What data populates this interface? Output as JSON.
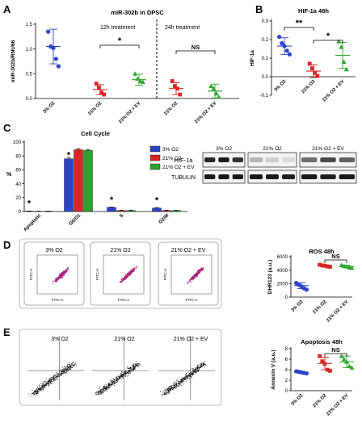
{
  "panel_letters": {
    "A": "A",
    "B": "B",
    "C": "C",
    "D": "D",
    "E": "E"
  },
  "colors": {
    "blue": "#2b44c8",
    "red": "#d92626",
    "green": "#2ca32c"
  },
  "chart_data": [
    {
      "id": "A",
      "type": "scatter",
      "title": "miR-302b in DPSC",
      "ylabel": "miR-302b/RNU66",
      "ylim": [
        0,
        1.5
      ],
      "yticks": [
        "0.0",
        "0.5",
        "1.0",
        "1.5"
      ],
      "section_labels": [
        "12h treatment",
        "24h treatment"
      ],
      "categories": [
        "3% O2",
        "21% O2",
        "21% O2 + EV",
        "21% O2",
        "21% O2 + EV"
      ],
      "groups": [
        {
          "x": "3% O2",
          "color": "blue",
          "marker": "circle",
          "mean": 1.05,
          "sd": 0.35,
          "points": [
            1.35,
            1.05,
            1.02,
            0.8,
            0.65
          ]
        },
        {
          "x": "21% O2",
          "color": "red",
          "marker": "square",
          "mean": 0.18,
          "sd": 0.1,
          "points": [
            0.3,
            0.22,
            0.12,
            0.08
          ]
        },
        {
          "x": "21% O2 + EV",
          "color": "green",
          "marker": "triangle",
          "mean": 0.38,
          "sd": 0.11,
          "points": [
            0.5,
            0.4,
            0.35,
            0.33
          ]
        },
        {
          "x": "21% O2",
          "color": "red",
          "marker": "square",
          "mean": 0.2,
          "sd": 0.12,
          "points": [
            0.35,
            0.25,
            0.2,
            0.08
          ]
        },
        {
          "x": "21% O2 + EV",
          "color": "green",
          "marker": "triangle",
          "mean": 0.15,
          "sd": 0.14,
          "points": [
            0.25,
            0.2,
            0.1,
            0.03
          ]
        }
      ],
      "annotations": [
        {
          "text": "*",
          "from": 1,
          "to": 2
        },
        {
          "text": "NS",
          "from": 3,
          "to": 4
        }
      ]
    },
    {
      "id": "B",
      "type": "scatter",
      "title": "HIF-1a 48h",
      "ylabel": "HIF-1a",
      "ylim": [
        -0.1,
        0.3
      ],
      "yticks": [
        "-0.1",
        "0.0",
        "0.1",
        "0.2",
        "0.3"
      ],
      "categories": [
        "3% O2",
        "21% O2",
        "21% O2 + EV"
      ],
      "groups": [
        {
          "x": "3% O2",
          "color": "blue",
          "marker": "circle",
          "mean": 0.165,
          "sd": 0.045,
          "points": [
            0.215,
            0.18,
            0.165,
            0.14,
            0.12
          ]
        },
        {
          "x": "21% O2",
          "color": "red",
          "marker": "square",
          "mean": 0.03,
          "sd": 0.035,
          "points": [
            0.07,
            0.045,
            0.02,
            0.005
          ]
        },
        {
          "x": "21% O2 + EV",
          "color": "green",
          "marker": "triangle",
          "mean": 0.115,
          "sd": 0.07,
          "points": [
            0.19,
            0.16,
            0.08,
            0.04
          ]
        }
      ],
      "annotations": [
        {
          "text": "**",
          "from": 0,
          "to": 1
        },
        {
          "text": "*",
          "from": 1,
          "to": 2
        }
      ]
    },
    {
      "id": "C",
      "type": "bar",
      "title": "Cell Cycle",
      "ylabel": "%",
      "ylim": [
        0,
        100
      ],
      "yticks": [
        "0",
        "20",
        "40",
        "60",
        "80",
        "100"
      ],
      "categories": [
        "Apoptotic",
        "G0/G1",
        "S",
        "G2/M"
      ],
      "series": [
        {
          "name": "3% O2",
          "color": "blue",
          "values": [
            0.5,
            76,
            6,
            5
          ],
          "errors": [
            0.3,
            2,
            0.5,
            0.5
          ]
        },
        {
          "name": "21% O2",
          "color": "red",
          "values": [
            0.3,
            89,
            1.5,
            1.5
          ],
          "errors": [
            0.2,
            1.5,
            0.3,
            0.3
          ]
        },
        {
          "name": "21% O2 + EV",
          "color": "green",
          "values": [
            0.5,
            88,
            1.5,
            1.5
          ],
          "errors": [
            0.2,
            1.5,
            0.3,
            0.3
          ]
        }
      ],
      "star_label": "*",
      "legend_position": "right"
    },
    {
      "id": "D",
      "type": "scatter",
      "title": "ROS 48h",
      "ylabel": "DHR123 (a.u.)",
      "ylim": [
        0,
        6000
      ],
      "yticks": [
        "0",
        "2000",
        "4000",
        "6000"
      ],
      "categories": [
        "3% O2",
        "21% O2",
        "21% O2 + EV"
      ],
      "groups": [
        {
          "x": "3% O2",
          "color": "blue",
          "marker": "circle",
          "mean": 1700,
          "sd": 450,
          "points": [
            2100,
            1800,
            1600,
            1300,
            1100
          ]
        },
        {
          "x": "21% O2",
          "color": "red",
          "marker": "square",
          "mean": 4650,
          "sd": 150,
          "points": [
            4800,
            4700,
            4650,
            4550,
            4500
          ]
        },
        {
          "x": "21% O2 + EV",
          "color": "green",
          "marker": "triangle",
          "mean": 4550,
          "sd": 200,
          "points": [
            4750,
            4600,
            4550,
            4400,
            4350
          ]
        }
      ],
      "annotations": [
        {
          "text": "NS",
          "from": 1,
          "to": 2
        }
      ]
    },
    {
      "id": "E",
      "type": "scatter",
      "title": "Apoptosis 48h",
      "ylabel": "Annexin V (a.u.)",
      "ylim": [
        0,
        8
      ],
      "yticks": [
        "0",
        "2",
        "4",
        "6",
        "8"
      ],
      "categories": [
        "3% O2",
        "21% O2",
        "21% O2 + EV"
      ],
      "groups": [
        {
          "x": "3% O2",
          "color": "blue",
          "marker": "circle",
          "mean": 3.5,
          "sd": 0.2,
          "points": [
            3.7,
            3.6,
            3.5,
            3.4,
            3.3
          ]
        },
        {
          "x": "21% O2",
          "color": "red",
          "marker": "square",
          "mean": 5.2,
          "sd": 1.2,
          "points": [
            6.6,
            5.6,
            5.1,
            4.0,
            3.8
          ]
        },
        {
          "x": "21% O2 + EV",
          "color": "green",
          "marker": "triangle",
          "mean": 5.5,
          "sd": 1.1,
          "points": [
            6.6,
            6.0,
            5.5,
            4.7,
            4.4
          ]
        }
      ],
      "annotations": [
        {
          "text": "NS",
          "from": 1,
          "to": 2
        }
      ]
    }
  ],
  "western": {
    "headers": [
      "3% O2",
      "21% O2",
      "21% O2 + EV"
    ],
    "rows": [
      "HIF-1a",
      "TUBULIN"
    ]
  },
  "flow_D": {
    "labels": [
      "3% O2",
      "21% O2",
      "21% O2 + EV"
    ],
    "xaxis": "FITC-A",
    "yaxis": "FITC-A"
  },
  "flow_E": {
    "labels": [
      "3% O2",
      "21% O2",
      "21% O2 + EV"
    ]
  }
}
